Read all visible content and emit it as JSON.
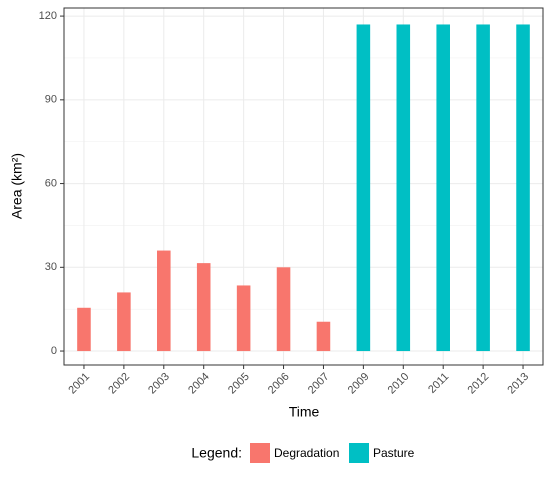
{
  "chart_data": {
    "type": "bar",
    "x_label": "Time",
    "y_label": "Area (km²)",
    "categories": [
      "2001",
      "2002",
      "2003",
      "2004",
      "2005",
      "2006",
      "2007",
      "2009",
      "2010",
      "2011",
      "2012",
      "2013"
    ],
    "series": [
      {
        "name": "Degradation",
        "color": "#f8766d",
        "values": [
          15.5,
          21,
          36,
          31.5,
          23.5,
          30,
          10.5,
          null,
          null,
          null,
          null,
          null
        ]
      },
      {
        "name": "Pasture",
        "color": "#00bfc4",
        "values": [
          null,
          null,
          null,
          null,
          null,
          null,
          null,
          117,
          117,
          117,
          117,
          117
        ]
      }
    ],
    "ylim": [
      -5,
      122.9
    ],
    "yticks": [
      0,
      30,
      60,
      90,
      120
    ],
    "grid": true,
    "legend_title": "Legend:",
    "legend_position": "bottom"
  }
}
